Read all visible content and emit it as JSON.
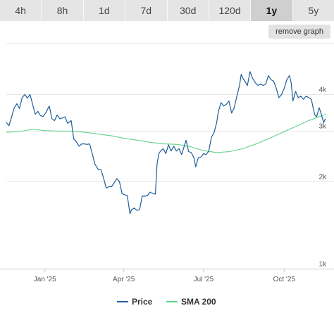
{
  "tabs": [
    {
      "label": "4h",
      "active": false
    },
    {
      "label": "8h",
      "active": false
    },
    {
      "label": "1d",
      "active": false
    },
    {
      "label": "7d",
      "active": false
    },
    {
      "label": "30d",
      "active": false
    },
    {
      "label": "120d",
      "active": false
    },
    {
      "label": "1y",
      "active": true
    },
    {
      "label": "5y",
      "active": false
    }
  ],
  "remove_graph_label": "remove graph",
  "chart_data": {
    "type": "line",
    "y_scale": "log",
    "ylim": [
      1000,
      6000
    ],
    "y_ticks": [
      {
        "value": 1000,
        "label": "1k"
      },
      {
        "value": 2000,
        "label": "2k"
      },
      {
        "value": 3000,
        "label": "3k"
      },
      {
        "value": 4000,
        "label": "4k"
      }
    ],
    "xlim": [
      "2024-11-18",
      "2025-11-18"
    ],
    "x_ticks": [
      {
        "date": "2025-01-01",
        "label": "Jan '25"
      },
      {
        "date": "2025-04-01",
        "label": "Apr '25"
      },
      {
        "date": "2025-07-01",
        "label": "Jul '25"
      },
      {
        "date": "2025-10-01",
        "label": "Oct '25"
      }
    ],
    "grid": "horizontal",
    "legend_position": "bottom-center",
    "series": [
      {
        "name": "Price",
        "color": "#1f5f99",
        "points": [
          [
            "2024-11-18",
            3200
          ],
          [
            "2024-11-21",
            3120
          ],
          [
            "2024-11-24",
            3350
          ],
          [
            "2024-11-27",
            3600
          ],
          [
            "2024-11-30",
            3720
          ],
          [
            "2024-12-03",
            3580
          ],
          [
            "2024-12-06",
            3900
          ],
          [
            "2024-12-09",
            4000
          ],
          [
            "2024-12-12",
            3890
          ],
          [
            "2024-12-15",
            4000
          ],
          [
            "2024-12-18",
            3700
          ],
          [
            "2024-12-21",
            3420
          ],
          [
            "2024-12-24",
            3500
          ],
          [
            "2024-12-27",
            3380
          ],
          [
            "2024-12-30",
            3360
          ],
          [
            "2025-01-02",
            3460
          ],
          [
            "2025-01-06",
            3650
          ],
          [
            "2025-01-09",
            3300
          ],
          [
            "2025-01-12",
            3250
          ],
          [
            "2025-01-15",
            3400
          ],
          [
            "2025-01-18",
            3300
          ],
          [
            "2025-01-21",
            3320
          ],
          [
            "2025-01-24",
            3350
          ],
          [
            "2025-01-27",
            3180
          ],
          [
            "2025-01-31",
            3250
          ],
          [
            "2025-02-03",
            2800
          ],
          [
            "2025-02-05",
            2770
          ],
          [
            "2025-02-09",
            2650
          ],
          [
            "2025-02-12",
            2700
          ],
          [
            "2025-02-15",
            2700
          ],
          [
            "2025-02-18",
            2690
          ],
          [
            "2025-02-21",
            2700
          ],
          [
            "2025-02-24",
            2500
          ],
          [
            "2025-02-27",
            2300
          ],
          [
            "2025-03-03",
            2200
          ],
          [
            "2025-03-06",
            2200
          ],
          [
            "2025-03-09",
            2050
          ],
          [
            "2025-03-12",
            1900
          ],
          [
            "2025-03-15",
            1920
          ],
          [
            "2025-03-18",
            1920
          ],
          [
            "2025-03-21",
            1980
          ],
          [
            "2025-03-24",
            2050
          ],
          [
            "2025-03-27",
            2000
          ],
          [
            "2025-03-30",
            1820
          ],
          [
            "2025-04-02",
            1800
          ],
          [
            "2025-04-05",
            1790
          ],
          [
            "2025-04-08",
            1550
          ],
          [
            "2025-04-10",
            1600
          ],
          [
            "2025-04-13",
            1620
          ],
          [
            "2025-04-16",
            1590
          ],
          [
            "2025-04-19",
            1600
          ],
          [
            "2025-04-22",
            1780
          ],
          [
            "2025-04-25",
            1780
          ],
          [
            "2025-04-28",
            1790
          ],
          [
            "2025-05-01",
            1840
          ],
          [
            "2025-05-04",
            1820
          ],
          [
            "2025-05-07",
            1810
          ],
          [
            "2025-05-09",
            2300
          ],
          [
            "2025-05-11",
            2500
          ],
          [
            "2025-05-13",
            2550
          ],
          [
            "2025-05-16",
            2600
          ],
          [
            "2025-05-19",
            2500
          ],
          [
            "2025-05-22",
            2680
          ],
          [
            "2025-05-25",
            2550
          ],
          [
            "2025-05-28",
            2650
          ],
          [
            "2025-05-31",
            2550
          ],
          [
            "2025-06-03",
            2600
          ],
          [
            "2025-06-06",
            2480
          ],
          [
            "2025-06-09",
            2650
          ],
          [
            "2025-06-11",
            2780
          ],
          [
            "2025-06-14",
            2540
          ],
          [
            "2025-06-17",
            2520
          ],
          [
            "2025-06-20",
            2420
          ],
          [
            "2025-06-22",
            2250
          ],
          [
            "2025-06-25",
            2420
          ],
          [
            "2025-06-28",
            2430
          ],
          [
            "2025-07-01",
            2500
          ],
          [
            "2025-07-04",
            2480
          ],
          [
            "2025-07-07",
            2550
          ],
          [
            "2025-07-10",
            2850
          ],
          [
            "2025-07-13",
            2950
          ],
          [
            "2025-07-16",
            3200
          ],
          [
            "2025-07-18",
            3500
          ],
          [
            "2025-07-21",
            3750
          ],
          [
            "2025-07-24",
            3650
          ],
          [
            "2025-07-27",
            3700
          ],
          [
            "2025-07-30",
            3800
          ],
          [
            "2025-08-02",
            3450
          ],
          [
            "2025-08-05",
            3600
          ],
          [
            "2025-08-08",
            3950
          ],
          [
            "2025-08-11",
            4300
          ],
          [
            "2025-08-13",
            4700
          ],
          [
            "2025-08-15",
            4550
          ],
          [
            "2025-08-17",
            4450
          ],
          [
            "2025-08-20",
            4300
          ],
          [
            "2025-08-23",
            4800
          ],
          [
            "2025-08-26",
            4550
          ],
          [
            "2025-08-29",
            4400
          ],
          [
            "2025-09-01",
            4300
          ],
          [
            "2025-09-04",
            4350
          ],
          [
            "2025-09-07",
            4300
          ],
          [
            "2025-09-10",
            4350
          ],
          [
            "2025-09-13",
            4650
          ],
          [
            "2025-09-16",
            4500
          ],
          [
            "2025-09-19",
            4450
          ],
          [
            "2025-09-22",
            4200
          ],
          [
            "2025-09-25",
            3900
          ],
          [
            "2025-09-28",
            4000
          ],
          [
            "2025-10-01",
            4200
          ],
          [
            "2025-10-04",
            4500
          ],
          [
            "2025-10-07",
            4650
          ],
          [
            "2025-10-09",
            4400
          ],
          [
            "2025-10-11",
            3800
          ],
          [
            "2025-10-14",
            4100
          ],
          [
            "2025-10-17",
            3900
          ],
          [
            "2025-10-20",
            3950
          ],
          [
            "2025-10-23",
            3850
          ],
          [
            "2025-10-26",
            3950
          ],
          [
            "2025-10-29",
            3900
          ],
          [
            "2025-11-01",
            3850
          ],
          [
            "2025-11-03",
            3600
          ],
          [
            "2025-11-05",
            3400
          ],
          [
            "2025-11-07",
            3350
          ],
          [
            "2025-11-10",
            3600
          ],
          [
            "2025-11-12",
            3450
          ],
          [
            "2025-11-15",
            3200
          ],
          [
            "2025-11-17",
            3300
          ]
        ]
      },
      {
        "name": "SMA 200",
        "color": "#5fd38a",
        "points": [
          [
            "2024-11-18",
            2960
          ],
          [
            "2024-12-03",
            2980
          ],
          [
            "2024-12-18",
            3030
          ],
          [
            "2025-01-02",
            3000
          ],
          [
            "2025-01-17",
            2990
          ],
          [
            "2025-02-01",
            2990
          ],
          [
            "2025-02-16",
            2960
          ],
          [
            "2025-03-03",
            2920
          ],
          [
            "2025-03-18",
            2880
          ],
          [
            "2025-04-02",
            2820
          ],
          [
            "2025-04-17",
            2780
          ],
          [
            "2025-05-02",
            2730
          ],
          [
            "2025-05-17",
            2700
          ],
          [
            "2025-06-01",
            2690
          ],
          [
            "2025-06-16",
            2640
          ],
          [
            "2025-07-01",
            2560
          ],
          [
            "2025-07-16",
            2520
          ],
          [
            "2025-07-31",
            2540
          ],
          [
            "2025-08-15",
            2600
          ],
          [
            "2025-08-30",
            2700
          ],
          [
            "2025-09-14",
            2820
          ],
          [
            "2025-09-29",
            2960
          ],
          [
            "2025-10-14",
            3100
          ],
          [
            "2025-10-29",
            3250
          ],
          [
            "2025-11-13",
            3380
          ],
          [
            "2025-11-18",
            3420
          ]
        ]
      }
    ]
  }
}
